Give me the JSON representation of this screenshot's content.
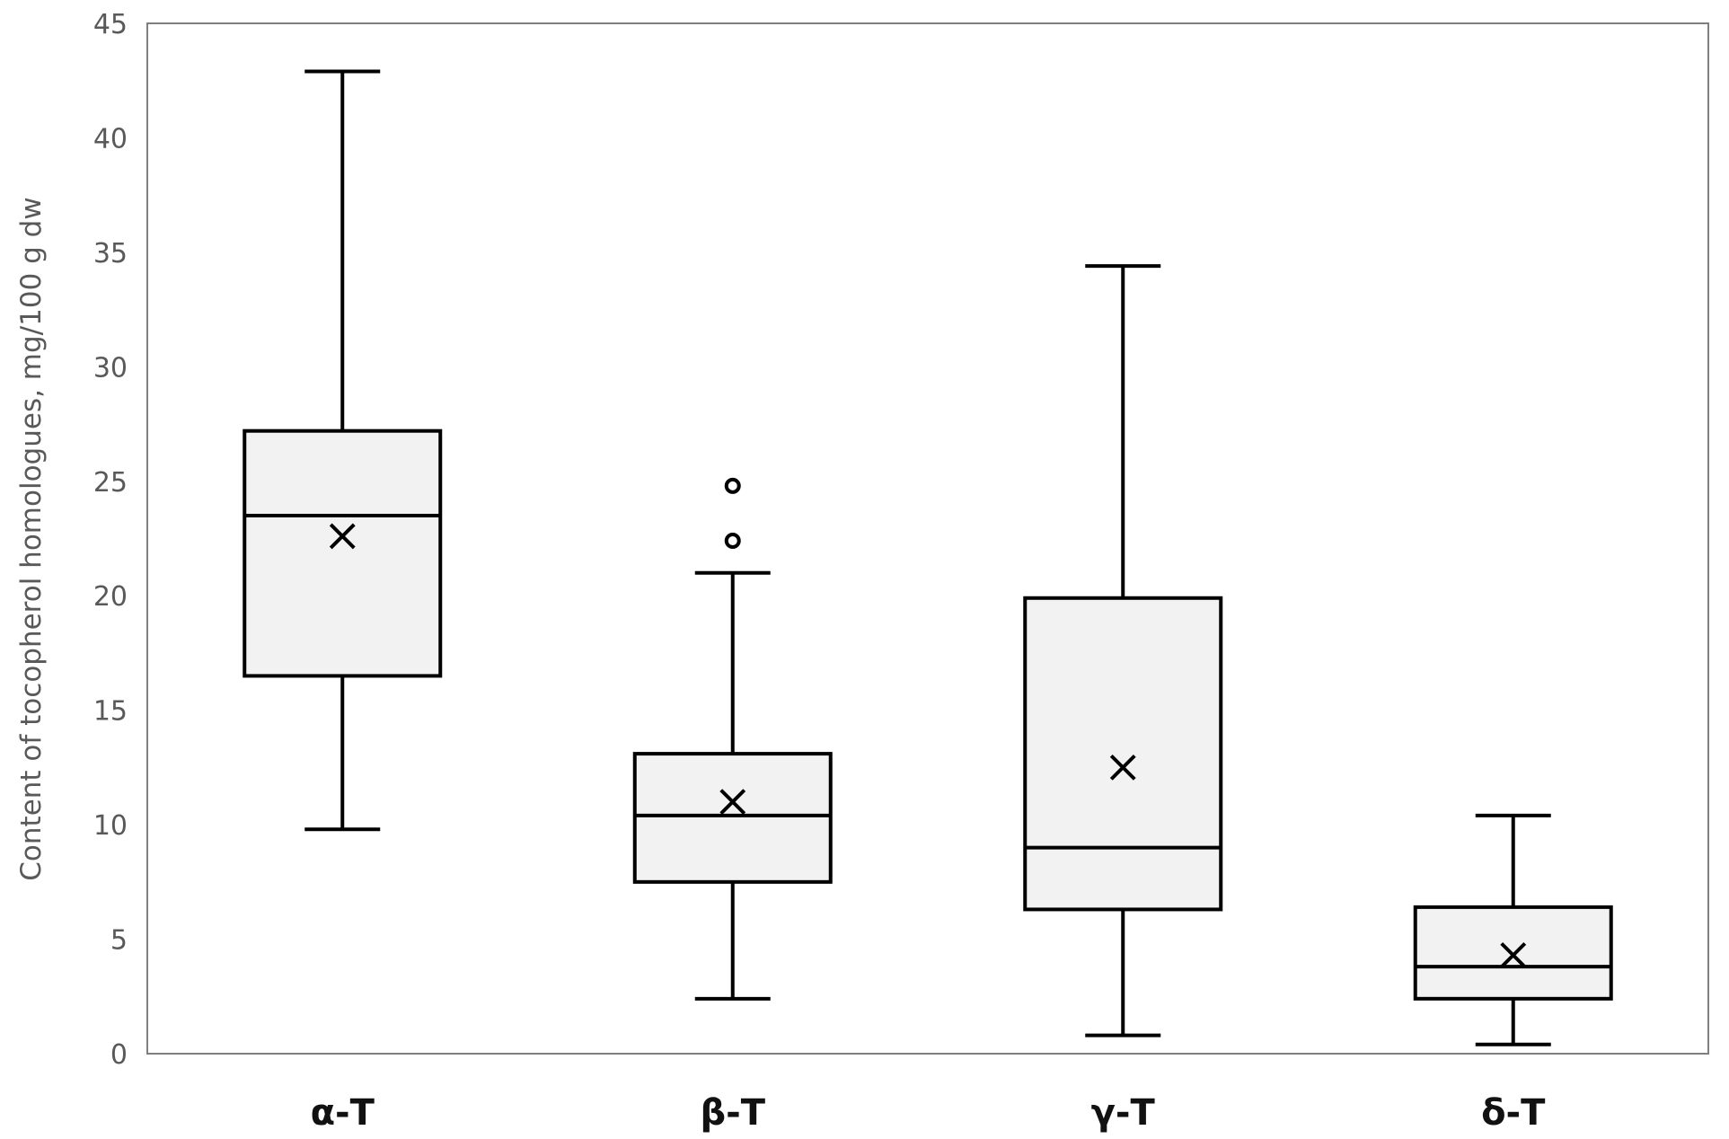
{
  "chart_data": {
    "type": "box",
    "title": "",
    "xlabel": "",
    "ylabel": "Content of tocopherol homologues, mg/100 g dw",
    "ylim": [
      0,
      45
    ],
    "yticks": [
      0,
      5,
      10,
      15,
      20,
      25,
      30,
      35,
      40,
      45
    ],
    "grid": false,
    "legend": "none",
    "box_fill": "#f2f2f2",
    "stroke_color": "#000000",
    "categories": [
      "α-T",
      "β-T",
      "γ-T",
      "δ-T"
    ],
    "boxes": [
      {
        "label": "α-T",
        "min": 9.8,
        "q1": 16.5,
        "median": 23.5,
        "mean": 22.6,
        "q3": 27.2,
        "max": 42.9,
        "outliers": []
      },
      {
        "label": "β-T",
        "min": 2.4,
        "q1": 7.5,
        "median": 10.4,
        "mean": 11.0,
        "q3": 13.1,
        "max": 21.0,
        "outliers": [
          22.4,
          24.8
        ]
      },
      {
        "label": "γ-T",
        "min": 0.8,
        "q1": 6.3,
        "median": 9.0,
        "mean": 12.5,
        "q3": 19.9,
        "max": 34.4,
        "outliers": []
      },
      {
        "label": "δ-T",
        "min": 0.4,
        "q1": 2.4,
        "median": 3.8,
        "mean": 4.3,
        "q3": 6.4,
        "max": 10.4,
        "outliers": []
      }
    ]
  }
}
